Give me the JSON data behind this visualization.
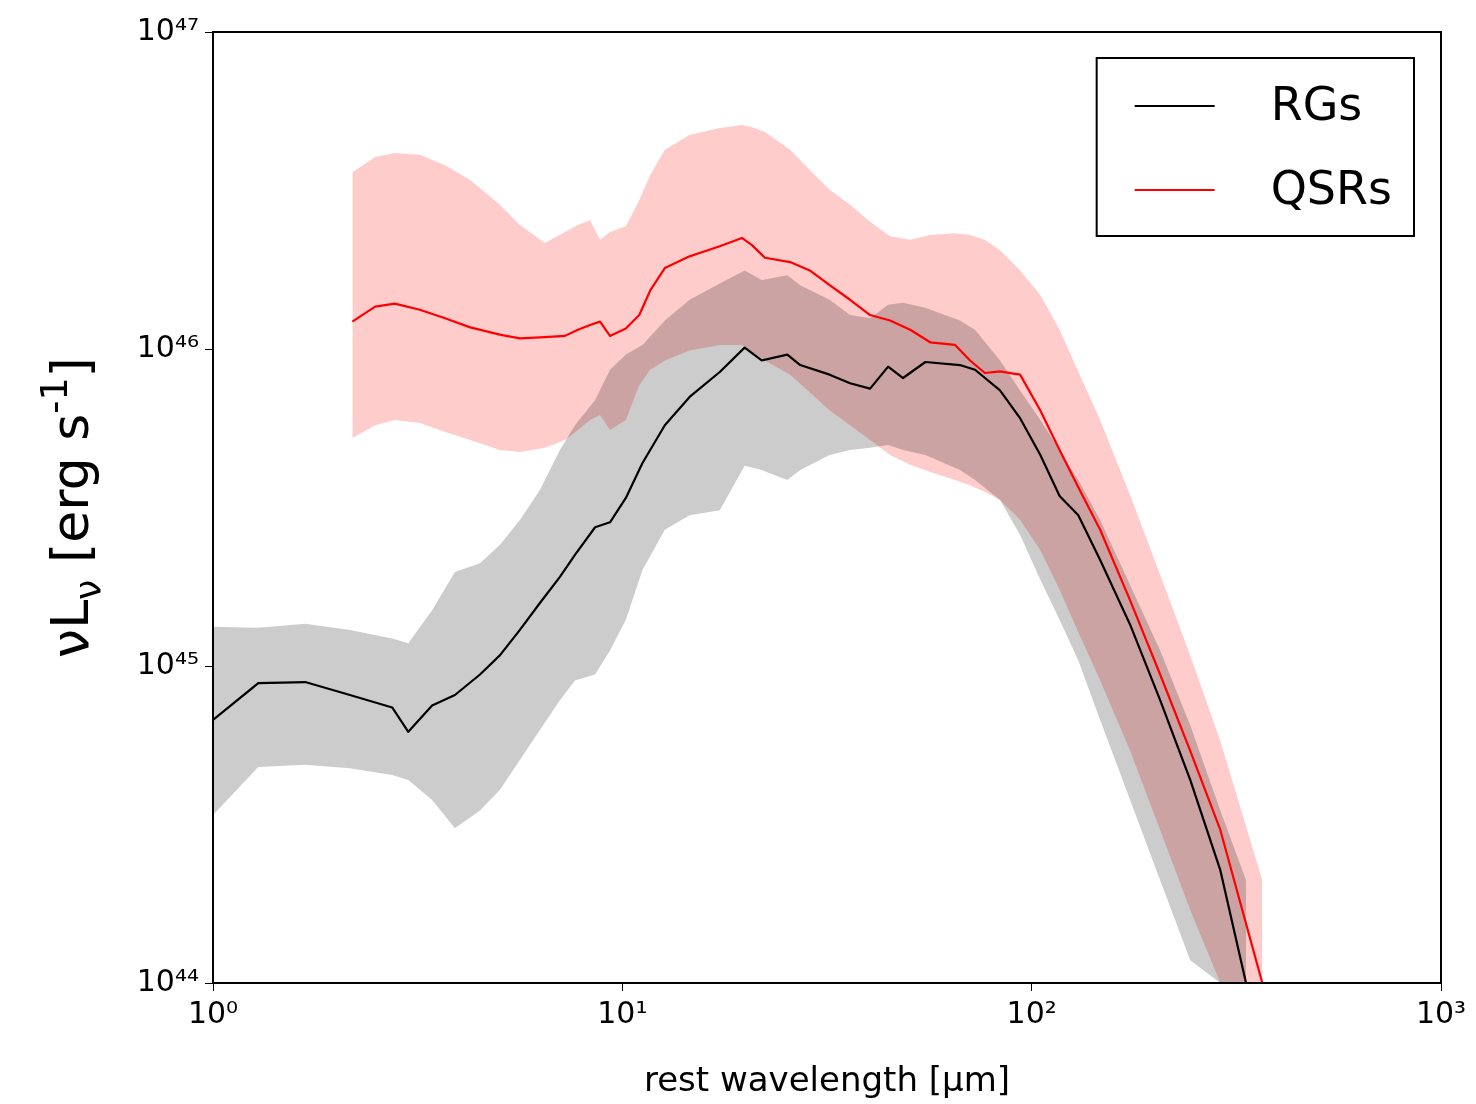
{
  "chart_data": {
    "type": "line",
    "xlabel": "rest wavelength [μm]",
    "ylabel": "νL$_{ν}$ [erg s$^{-1}$]",
    "log": "xy",
    "legend": "top right",
    "xlim": [
      1,
      1000
    ],
    "ylim": [
      1e+44,
      1e+47
    ],
    "xticks": [
      {
        "value": 1,
        "label": "10⁰"
      },
      {
        "value": 10,
        "label": "10¹"
      },
      {
        "value": 100,
        "label": "10²"
      },
      {
        "value": 1000,
        "label": "10³"
      }
    ],
    "yticks": [
      {
        "value": 1e+44,
        "label": "10⁴⁴"
      },
      {
        "value": 1e+45,
        "label": "10⁴⁵"
      },
      {
        "value": 1e+46,
        "label": "10⁴⁶"
      },
      {
        "value": 1e+47,
        "label": "10⁴⁷"
      }
    ],
    "series": [
      {
        "name": "RGs",
        "color": "#000000",
        "x": [
          1,
          1.29,
          1.68,
          2.16,
          2.74,
          3.0,
          3.43,
          3.9,
          4.49,
          5.02,
          5.62,
          6.29,
          7.04,
          7.66,
          8.58,
          9.33,
          10.2,
          11.2,
          12.7,
          14.6,
          17.3,
          19.9,
          21.9,
          25.3,
          27.2,
          32.1,
          36.0,
          40.3,
          44.6,
          48.5,
          55.0,
          66.8,
          72.7,
          83.7,
          93.7,
          105,
          117,
          130,
          147,
          174,
          206,
          244,
          289,
          334
        ],
        "values": [
          6.76e+44,
          8.83e+44,
          8.9e+44,
          8.1e+44,
          7.4e+44,
          6.2e+44,
          7.5e+44,
          8.1e+44,
          9.4e+44,
          1.08e+45,
          1.3e+45,
          1.58e+45,
          1.91e+45,
          2.24e+45,
          2.74e+45,
          2.84e+45,
          3.39e+45,
          4.37e+45,
          5.75e+45,
          7.06e+45,
          8.46e+45,
          1.01e+46,
          9.2e+45,
          9.6e+45,
          8.9e+45,
          8.3e+45,
          7.8e+45,
          7.5e+45,
          8.8e+45,
          8.1e+45,
          9.1e+45,
          8.9e+45,
          8.6e+45,
          7.4e+45,
          6.05e+45,
          4.63e+45,
          3.44e+45,
          2.99e+45,
          2.16e+45,
          1.35e+45,
          7.8e+44,
          4.37e+44,
          2.27e+44,
          1e+44
        ],
        "upper": [
          1.33e+45,
          1.32e+45,
          1.36e+45,
          1.3e+45,
          1.22e+45,
          1.18e+45,
          1.5e+45,
          1.98e+45,
          2.11e+45,
          2.41e+45,
          2.89e+45,
          3.59e+45,
          4.8e+45,
          5.75e+45,
          6.9e+45,
          8.6e+45,
          9.6e+45,
          1.03e+46,
          1.23e+46,
          1.43e+46,
          1.61e+46,
          1.77e+46,
          1.65e+46,
          1.71e+46,
          1.59e+46,
          1.43e+46,
          1.28e+46,
          1.25e+46,
          1.38e+46,
          1.4e+46,
          1.35e+46,
          1.23e+46,
          1.15e+46,
          9.2e+45,
          7.4e+45,
          5.97e+45,
          4.8e+45,
          3.86e+45,
          2.89e+45,
          1.8e+45,
          1.12e+45,
          6.5e+44,
          3.5e+44,
          2.11e+44
        ],
        "lower": [
          3.39e+44,
          4.8e+44,
          4.88e+44,
          4.76e+44,
          4.53e+44,
          4.37e+44,
          3.78e+44,
          3.08e+44,
          3.5e+44,
          4.06e+44,
          5.05e+44,
          6.28e+44,
          7.8e+44,
          9e+44,
          9.4e+44,
          1.12e+45,
          1.4e+45,
          2.01e+45,
          2.69e+45,
          2.99e+45,
          3.1e+45,
          4.28e+45,
          4.15e+45,
          3.86e+45,
          4.15e+45,
          4.63e+45,
          4.8e+45,
          4.88e+45,
          4.98e+45,
          4.8e+45,
          4.63e+45,
          4.15e+45,
          3.86e+45,
          3.34e+45,
          2.59e+45,
          1.87e+45,
          1.4e+45,
          1.04e+45,
          6.76e+44,
          3.78e+44,
          2.11e+44,
          1.18e+44,
          1e+44,
          1e+44
        ]
      },
      {
        "name": "QSRs",
        "color": "#ff0000",
        "x": [
          2.19,
          2.49,
          2.78,
          3.2,
          3.69,
          4.25,
          5.02,
          5.62,
          6.47,
          7.24,
          7.79,
          8.34,
          8.82,
          9.33,
          10.2,
          11.0,
          11.7,
          12.7,
          14.6,
          17.3,
          19.6,
          20.7,
          22.3,
          25.7,
          28.7,
          32.1,
          36.0,
          40.3,
          45.1,
          50.5,
          56.5,
          65.0,
          70.7,
          76.9,
          83.7,
          93.7,
          105,
          117,
          131,
          147,
          174,
          206,
          244,
          289,
          366
        ],
        "values": [
          1.22e+46,
          1.36e+46,
          1.39e+46,
          1.33e+46,
          1.25e+46,
          1.17e+46,
          1.11e+46,
          1.08e+46,
          1.09e+46,
          1.1e+46,
          1.15e+46,
          1.19e+46,
          1.22e+46,
          1.1e+46,
          1.16e+46,
          1.28e+46,
          1.53e+46,
          1.8e+46,
          1.96e+46,
          2.11e+46,
          2.24e+46,
          2.13e+46,
          1.94e+46,
          1.88e+46,
          1.77e+46,
          1.59e+46,
          1.43e+46,
          1.28e+46,
          1.23e+46,
          1.15e+46,
          1.05e+46,
          1.03e+46,
          9.2e+45,
          8.4e+45,
          8.5e+45,
          8.3e+45,
          6.4e+45,
          4.8e+45,
          3.59e+45,
          2.69e+45,
          1.61e+45,
          9.4e+44,
          5.4e+44,
          3.04e+44,
          1e+44
        ],
        "upper": [
          3.61e+46,
          4.03e+46,
          4.15e+46,
          4.1e+46,
          3.8e+46,
          3.41e+46,
          2.85e+46,
          2.46e+46,
          2.16e+46,
          2.34e+46,
          2.46e+46,
          2.55e+46,
          2.21e+46,
          2.34e+46,
          2.44e+46,
          2.95e+46,
          3.54e+46,
          4.25e+46,
          4.73e+46,
          4.98e+46,
          5.09e+46,
          5.02e+46,
          4.84e+46,
          4.25e+46,
          3.67e+46,
          3.18e+46,
          2.85e+46,
          2.52e+46,
          2.27e+46,
          2.21e+46,
          2.29e+46,
          2.32e+46,
          2.29e+46,
          2.21e+46,
          2.05e+46,
          1.77e+46,
          1.48e+46,
          1.15e+46,
          8.3e+45,
          5.97e+45,
          3.46e+45,
          1.94e+45,
          1.08e+45,
          5.8e+44,
          2.11e+44
        ],
        "lower": [
          5.24e+45,
          5.75e+45,
          5.97e+45,
          5.84e+45,
          5.47e+45,
          5.16e+45,
          4.8e+45,
          4.73e+45,
          4.88e+45,
          5.16e+45,
          5.55e+45,
          5.97e+45,
          6.19e+45,
          5.55e+45,
          5.97e+45,
          7.7e+45,
          8.6e+45,
          9.2e+45,
          9.9e+45,
          1.03e+46,
          1.03e+46,
          9.8e+45,
          9.2e+45,
          8.3e+45,
          7.3e+45,
          6.4e+45,
          5.75e+45,
          5.16e+45,
          4.63e+45,
          4.31e+45,
          4.09e+45,
          3.86e+45,
          3.72e+45,
          3.54e+45,
          3.34e+45,
          2.89e+45,
          2.32e+45,
          1.74e+45,
          1.25e+45,
          9e+44,
          5.4e+44,
          3.04e+44,
          1.7e+44,
          1e+44,
          1e+44
        ]
      }
    ]
  }
}
